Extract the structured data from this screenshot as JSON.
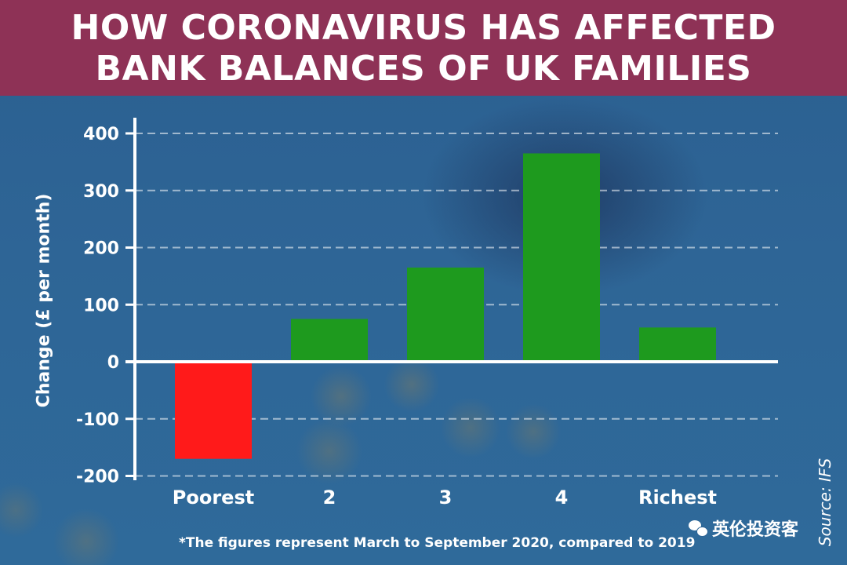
{
  "header": {
    "title_line1": "HOW CORONAVIRUS HAS AFFECTED",
    "title_line2": "BANK BALANCES OF UK FAMILIES"
  },
  "footnote": "*The figures represent March to September 2020, compared to 2019",
  "source": "Source: IFS",
  "watermark": {
    "icon": "wechat-icon",
    "text": "英伦投资客"
  },
  "colors": {
    "header": "#8e3256",
    "positive": "#1e9a1e",
    "negative": "#ff1a1a",
    "background": "#2e6596"
  },
  "chart_data": {
    "type": "bar",
    "title": "HOW CORONAVIRUS HAS AFFECTED BANK BALANCES OF UK FAMILIES",
    "ylabel": "Change (£ per month)",
    "xlabel": "",
    "categories": [
      "Poorest",
      "2",
      "3",
      "4",
      "Richest"
    ],
    "values": [
      -170,
      75,
      165,
      365,
      60
    ],
    "ylim": [
      -200,
      400
    ],
    "yticks": [
      400,
      300,
      200,
      100,
      0,
      -100,
      -200
    ],
    "ytick_labels": [
      "400",
      "300",
      "200",
      "100",
      "0",
      "-100",
      "-200"
    ],
    "grid": true,
    "grid_style": "dashed horizontal"
  }
}
